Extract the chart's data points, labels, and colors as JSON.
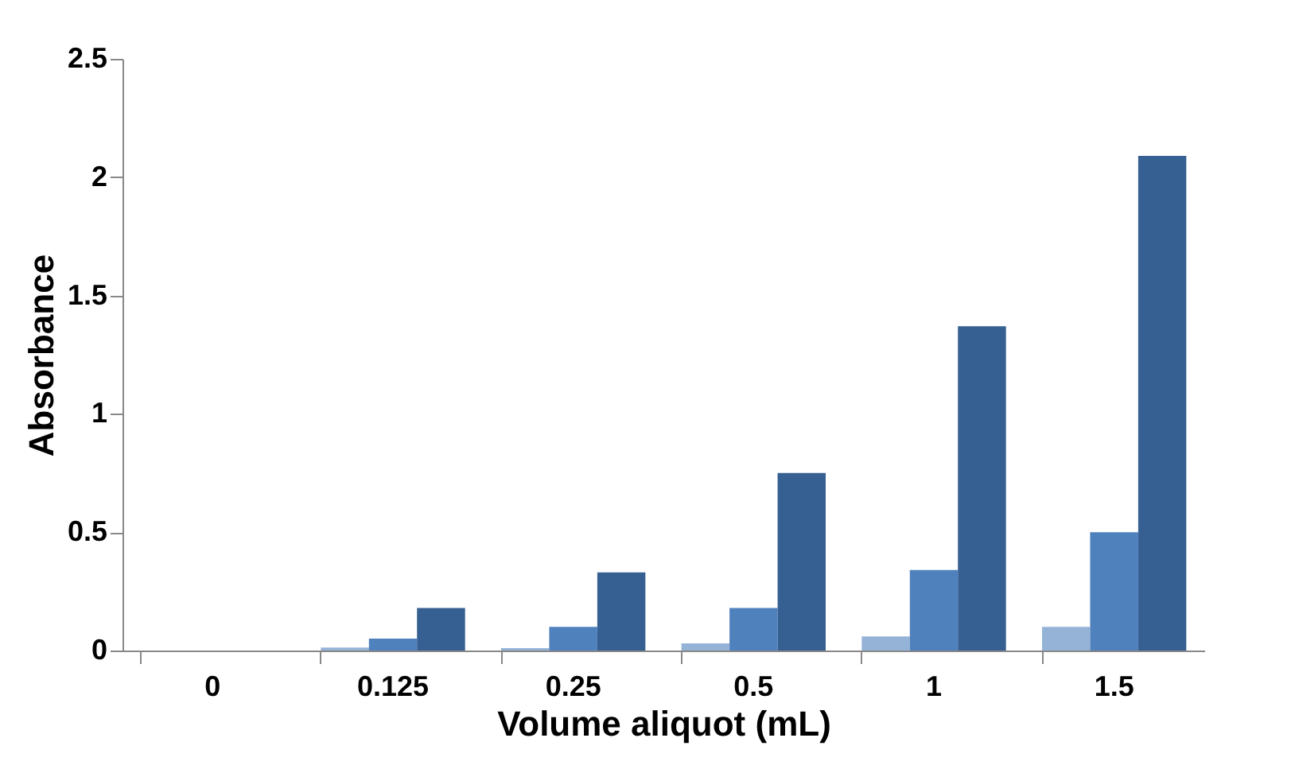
{
  "chart_data": {
    "type": "bar",
    "xlabel": "Volume aliquot (mL)",
    "ylabel": "Absorbance",
    "categories": [
      "0",
      "0.125",
      "0.25",
      "0.5",
      "1",
      "1.5"
    ],
    "series": [
      {
        "color": "#95b3d7",
        "values": [
          0,
          0.013,
          0.01,
          0.03,
          0.06,
          0.1
        ]
      },
      {
        "color": "#4f81bd",
        "values": [
          0,
          0.05,
          0.1,
          0.18,
          0.34,
          0.5
        ]
      },
      {
        "color": "#366092",
        "values": [
          0,
          0.18,
          0.33,
          0.75,
          1.37,
          2.09
        ]
      }
    ],
    "ylim": [
      0,
      2.5
    ],
    "yticks": [
      0,
      0.5,
      1,
      1.5,
      2,
      2.5
    ],
    "grid": false,
    "legend": false
  }
}
